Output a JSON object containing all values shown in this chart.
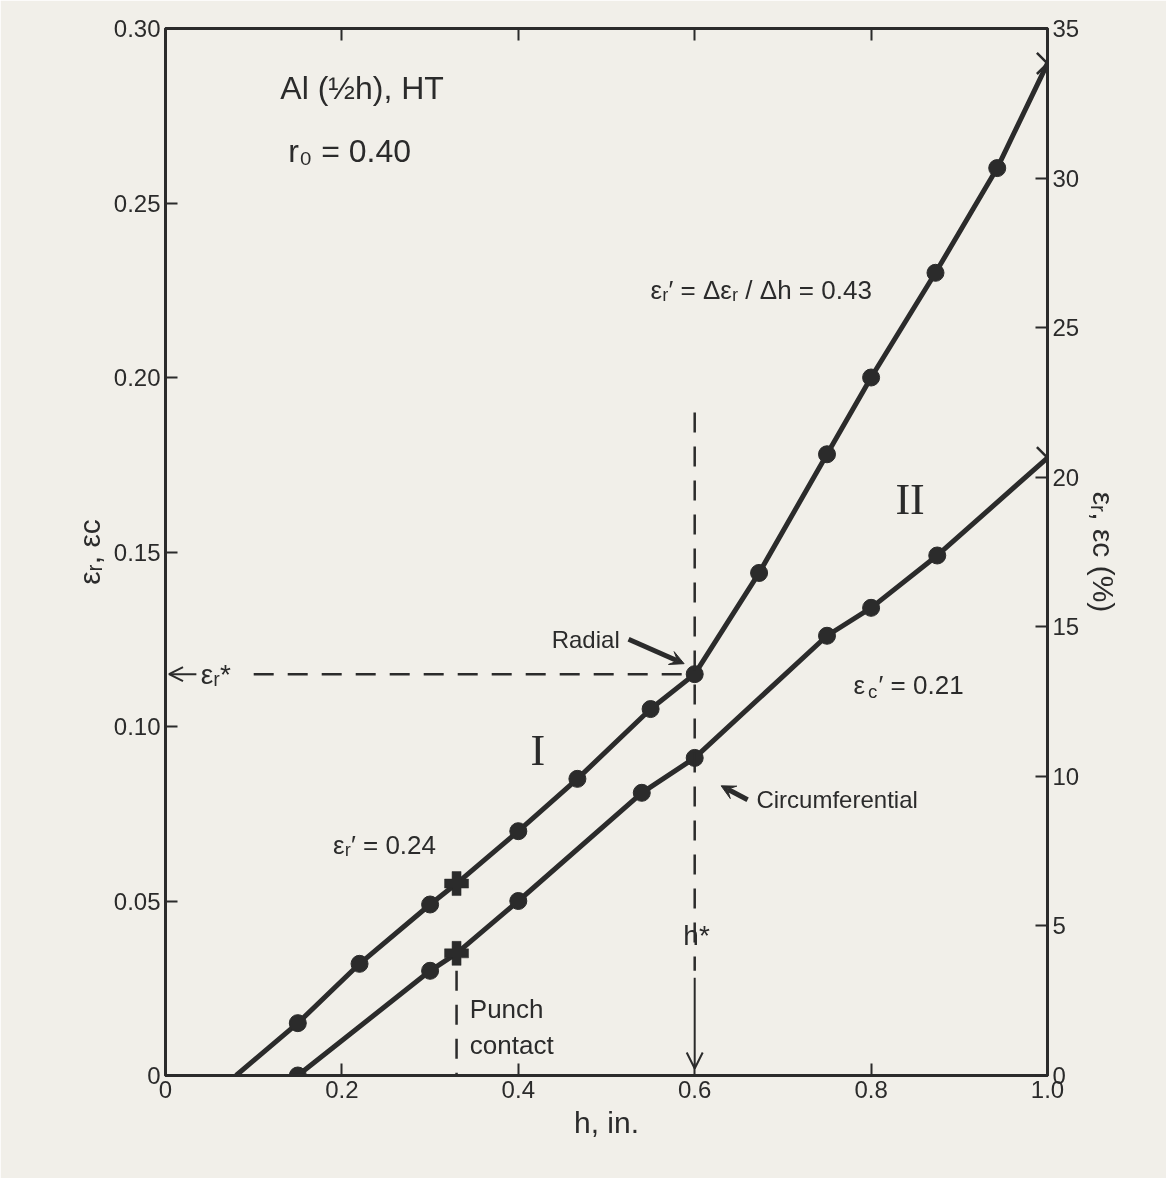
{
  "chart_data": {
    "type": "line",
    "xlabel": "h, in.",
    "ylabel": "εᵣ, εc",
    "y2label": "εᵣ, εc (%)",
    "xlim": [
      0,
      1.0
    ],
    "ylim": [
      0,
      0.3
    ],
    "y2lim": [
      0,
      35
    ],
    "xticks": [
      0,
      0.2,
      0.4,
      0.6,
      0.8,
      {
        "value": 1.0,
        "label": "1.0"
      }
    ],
    "yticks": [
      0,
      0.05,
      {
        "value": 0.1,
        "label": "0.10"
      },
      0.15,
      {
        "value": 0.2,
        "label": "0.20"
      },
      0.25,
      {
        "value": 0.3,
        "label": "0.30"
      }
    ],
    "y2ticks": [
      0,
      5,
      10,
      15,
      20,
      25,
      30,
      35
    ],
    "grid": false,
    "line_style": "solid",
    "series": [
      {
        "name": "Radial",
        "marker": "none",
        "color": "#2b2b2b",
        "x": [
          0.08,
          0.15,
          0.22,
          0.3,
          0.33,
          0.4,
          0.467,
          0.55,
          0.6,
          0.673,
          0.75,
          0.8,
          0.873,
          0.943,
          1.0
        ],
        "values": [
          0,
          0.015,
          0.032,
          0.049,
          0.055,
          0.07,
          0.085,
          0.105,
          0.115,
          0.144,
          0.178,
          0.2,
          0.23,
          0.26,
          0.29
        ]
      },
      {
        "name": "Circumferential",
        "marker": "none",
        "color": "#2b2b2b",
        "x": [
          0.15,
          0.3,
          0.33,
          0.4,
          0.54,
          0.6,
          0.75,
          0.8,
          0.875,
          1.0
        ],
        "values": [
          0,
          0.03,
          0.035,
          0.05,
          0.081,
          0.091,
          0.126,
          0.134,
          0.149,
          0.177
        ]
      },
      {
        "type": "scatter",
        "marker": "circle",
        "color": "#2b2b2b",
        "x": [
          0.15,
          0.22,
          0.3,
          0.4,
          0.467,
          0.55,
          0.6,
          0.673,
          0.75,
          0.8,
          0.873,
          0.943
        ],
        "values": [
          0.015,
          0.032,
          0.049,
          0.07,
          0.085,
          0.105,
          0.115,
          0.144,
          0.178,
          0.2,
          0.23,
          0.26
        ]
      },
      {
        "type": "scatter",
        "marker": "circle",
        "color": "#2b2b2b",
        "x": [
          0.15,
          0.3,
          0.4,
          0.54,
          0.6,
          0.75,
          0.8,
          0.875
        ],
        "values": [
          0,
          0.03,
          0.05,
          0.081,
          0.091,
          0.126,
          0.134,
          0.149
        ]
      },
      {
        "type": "scatter",
        "marker": "cross",
        "color": "#2b2b2b",
        "x": [
          0.33,
          0.33
        ],
        "values": [
          0.055,
          0.035
        ]
      },
      {
        "type": "scatter",
        "marker": "x",
        "color": "#2b2b2b",
        "x": [
          1.0,
          1.0
        ],
        "values": [
          0.29,
          0.177
        ]
      },
      {
        "type": "line",
        "line_style": "dashed",
        "marker": "none",
        "color": "#2b2b2b",
        "x": [
          0.1,
          0.6
        ],
        "values": [
          0.115,
          0.115
        ]
      },
      {
        "type": "line",
        "line_style": "dashed",
        "marker": "none",
        "color": "#2b2b2b",
        "x": [
          0.6,
          0.6
        ],
        "values": [
          0.19,
          0.03
        ]
      },
      {
        "type": "line",
        "line_style": "dashed",
        "marker": "none",
        "color": "#2b2b2b",
        "x": [
          0.33,
          0.33
        ],
        "values": [
          0.03,
          0
        ]
      }
    ],
    "annotations": [
      "Al (½h), HT",
      "r₀ = 0.40",
      "εᵣ′ = Δεᵣ / Δh = 0.43",
      "εᵣ′ = 0.24",
      "ε$_{c}$′ = 0.21",
      "I",
      "II",
      "εᵣ*",
      {
        "text": "h*",
        "x": 0.6,
        "y": 0.04
      },
      "Punch\ncontact"
    ]
  }
}
